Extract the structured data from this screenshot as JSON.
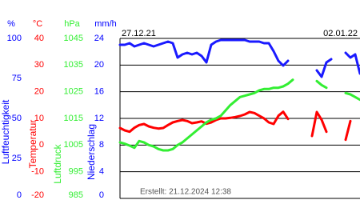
{
  "chart_data": {
    "type": "line",
    "x_labels": [
      "27.12.21",
      "02.01.22"
    ],
    "footer": "Erstellt: 21.12.2024 12:38",
    "grid": true,
    "axes": [
      {
        "unit": "%",
        "label": "Luftfeuchtigkeit",
        "color": "#0000ff",
        "ylim": [
          0,
          100
        ],
        "yticks": [
          0,
          25,
          50,
          75,
          100
        ]
      },
      {
        "unit": "°C",
        "label": "Temperatur",
        "color": "#ff0000",
        "ylim": [
          -20,
          40
        ],
        "yticks": [
          -20,
          -10,
          0,
          10,
          20,
          30,
          40
        ]
      },
      {
        "unit": "hPa",
        "label": "Luftdruck",
        "color": "#33ee33",
        "ylim": [
          985,
          1045
        ],
        "yticks": [
          985,
          995,
          1005,
          1015,
          1025,
          1035,
          1045
        ]
      },
      {
        "unit": "mm/h",
        "label": "Niederschlag",
        "color": "#0000ff",
        "ylim": [
          0,
          24
        ],
        "yticks": [
          0,
          4,
          8,
          12,
          16,
          20,
          24
        ]
      }
    ],
    "series": [
      {
        "axis": 0,
        "color": "#1a1aff",
        "values": [
          96,
          96,
          97,
          95,
          96,
          97,
          96,
          95,
          96,
          97,
          98,
          97,
          88,
          90,
          91,
          90,
          91,
          89,
          85,
          96,
          98,
          99,
          99,
          99,
          99,
          99,
          99,
          98,
          98,
          98,
          97,
          97,
          92,
          86,
          83,
          86,
          null,
          null,
          null,
          null,
          null,
          80,
          76,
          85,
          87,
          null,
          null,
          91,
          88,
          90,
          78
        ]
      },
      {
        "axis": 1,
        "color": "#ff0000",
        "values": [
          6.4,
          5.5,
          5,
          6.5,
          7.5,
          7.9,
          7,
          6.5,
          6.2,
          6.4,
          7.5,
          8.5,
          9,
          9.4,
          9,
          8.2,
          8.5,
          8.9,
          8,
          8.5,
          9.4,
          10,
          10,
          10.2,
          10.5,
          10.9,
          11.5,
          12.4,
          12,
          11,
          10,
          8.5,
          7.9,
          11,
          12.5,
          9.8,
          null,
          null,
          null,
          null,
          3.4,
          12.4,
          9.5,
          5,
          null,
          null,
          null,
          2,
          9,
          null,
          null
        ]
      },
      {
        "axis": 2,
        "color": "#33ee33",
        "values": [
          1006,
          1005.5,
          1004.8,
          1004,
          1006.5,
          1006,
          1005,
          1004.5,
          1003.5,
          1003,
          1003,
          1003.5,
          1005,
          1006,
          1007.5,
          1009,
          1010.5,
          1012,
          1013.5,
          1014.5,
          1015,
          1016,
          1018,
          1020,
          1021.5,
          1023,
          1023.5,
          1024,
          1024.5,
          1025.5,
          1026,
          1026,
          1026.5,
          1026.5,
          1027,
          1028,
          1029.5,
          null,
          null,
          null,
          null,
          1029,
          1027.5,
          1026.5,
          null,
          null,
          null,
          1024.5,
          1024,
          1023,
          1022
        ]
      }
    ]
  }
}
